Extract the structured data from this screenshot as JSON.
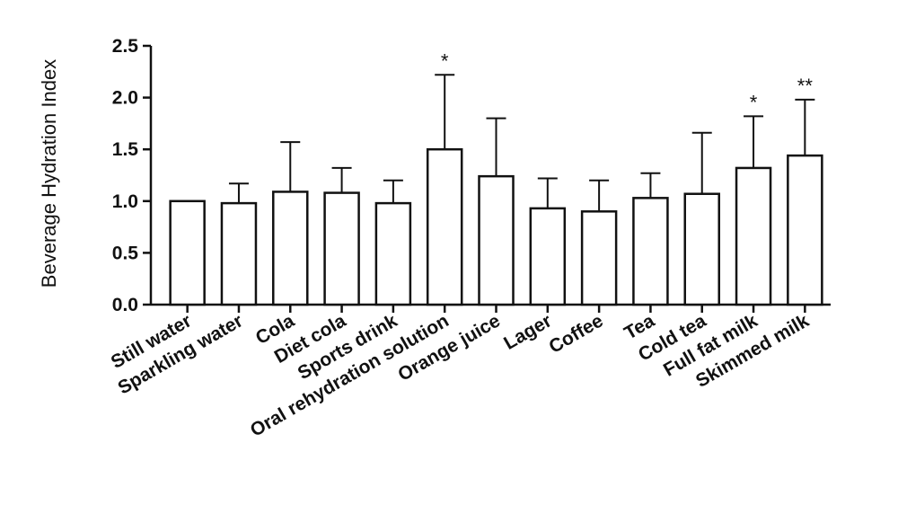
{
  "chart_data": {
    "type": "bar",
    "ylabel": "Beverage Hydration Index",
    "ylim": [
      0,
      2.5
    ],
    "yticks": [
      "0.0",
      "0.5",
      "1.0",
      "1.5",
      "2.0",
      "2.5"
    ],
    "grid": false,
    "categories": [
      "Still water",
      "Sparkling water",
      "Cola",
      "Diet cola",
      "Sports drink",
      "Oral rehydration solution",
      "Orange juice",
      "Lager",
      "Coffee",
      "Tea",
      "Cold tea",
      "Full fat milk",
      "Skimmed milk"
    ],
    "values": [
      1.0,
      0.98,
      1.09,
      1.08,
      0.98,
      1.5,
      1.24,
      0.93,
      0.9,
      1.03,
      1.07,
      1.32,
      1.44
    ],
    "error_upper": [
      0.0,
      0.19,
      0.48,
      0.24,
      0.22,
      0.72,
      0.56,
      0.29,
      0.3,
      0.24,
      0.59,
      0.5,
      0.54
    ],
    "annotations": [
      "",
      "",
      "",
      "",
      "",
      "*",
      "",
      "",
      "",
      "",
      "",
      "*",
      "**"
    ],
    "colors": {
      "bar_fill": "#ffffff",
      "bar_stroke": "#111111",
      "axis": "#111111"
    }
  }
}
